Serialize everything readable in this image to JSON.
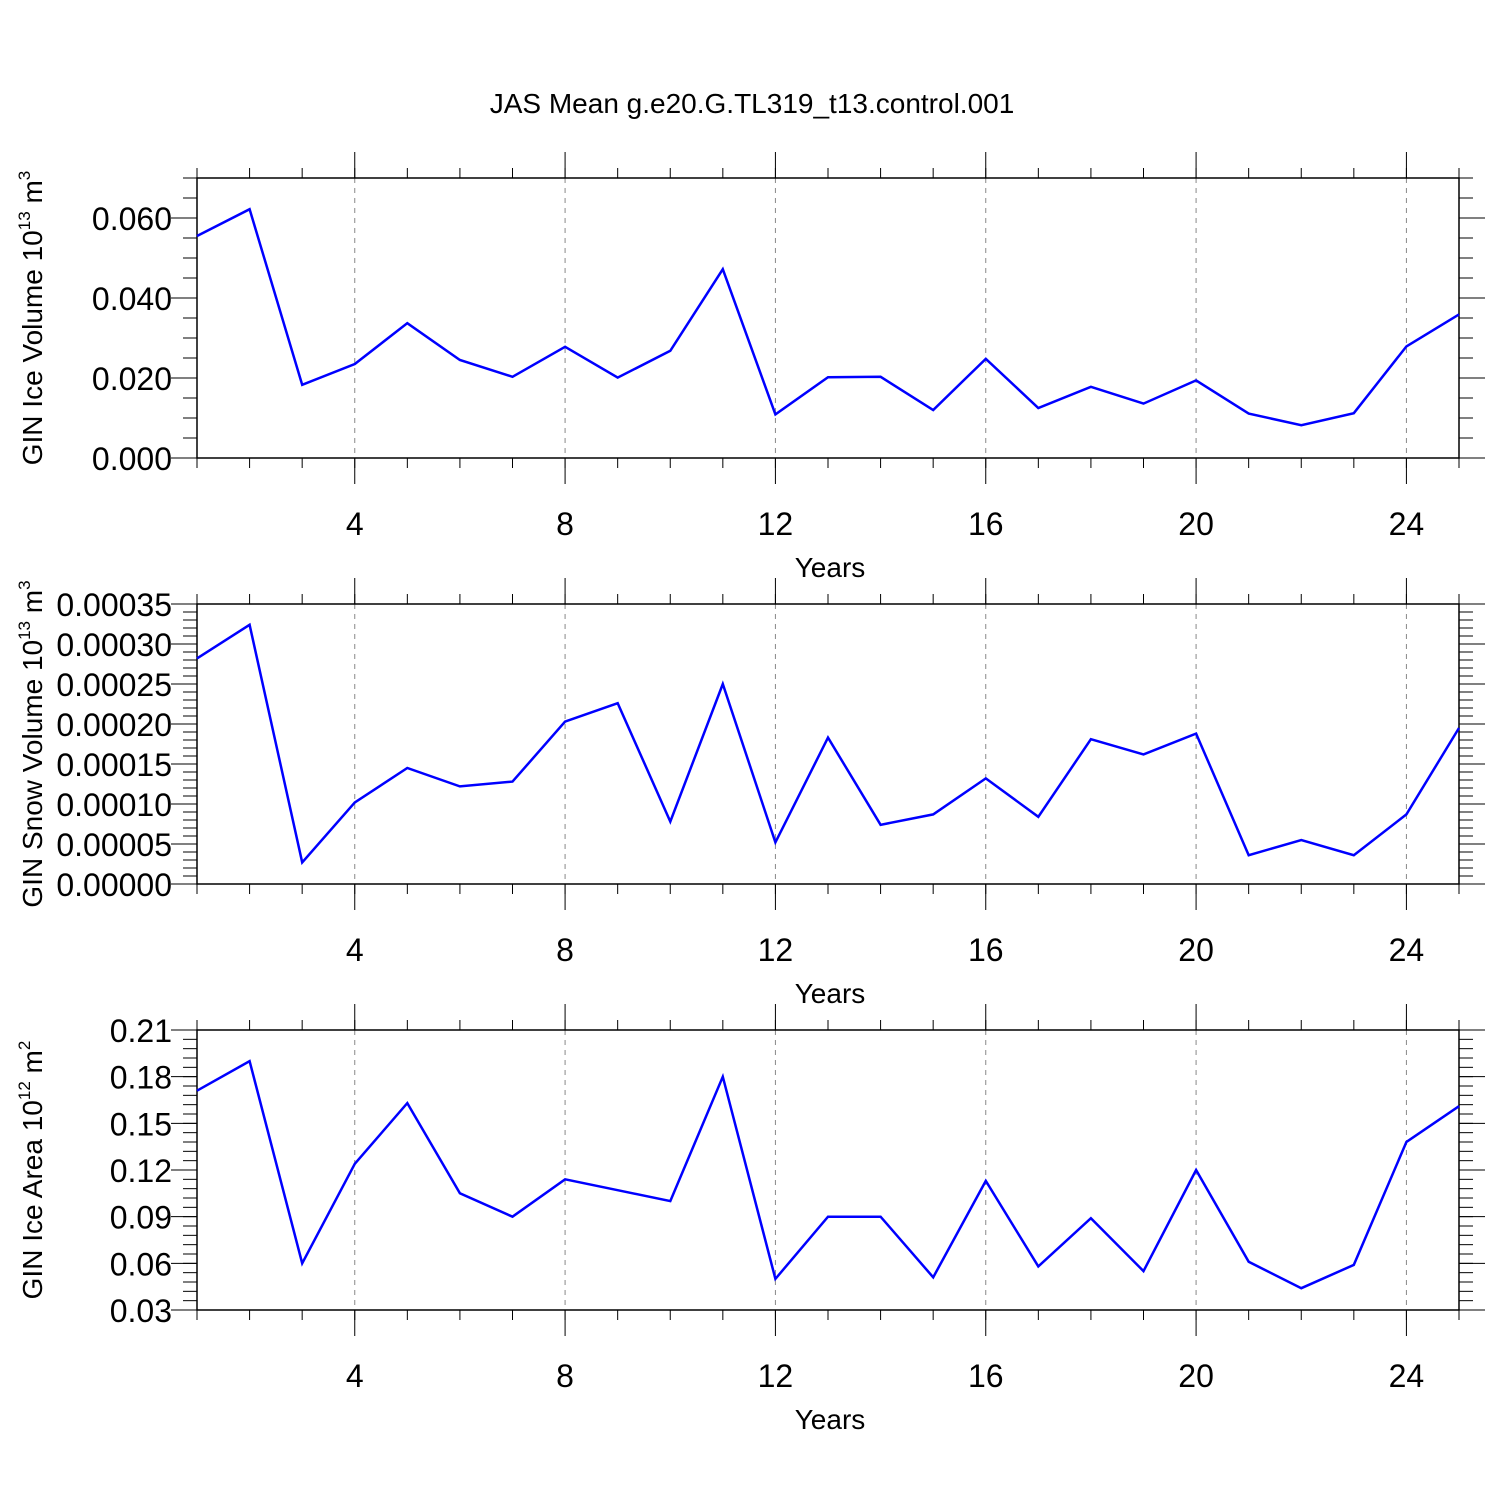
{
  "title": "JAS Mean g.e20.G.TL319_t13.control.001",
  "colors": {
    "line": "#0000ff",
    "axis": "#000000",
    "grid": "#888888"
  },
  "chart_data": [
    {
      "type": "line",
      "ylabel_main": "GIN Ice Volume 10",
      "ylabel_exp": "13",
      "ylabel_unit": " m",
      "ylabel_unit_exp": "3",
      "xlabel": "Years",
      "xlim": [
        1,
        25
      ],
      "ylim": [
        0.0,
        0.07
      ],
      "yticks": [
        0.0,
        0.02,
        0.04,
        0.06
      ],
      "ytick_labels": [
        "0.000",
        "0.020",
        "0.040",
        "0.060"
      ],
      "yminor_step": 0.005,
      "xticks": [
        4,
        8,
        12,
        16,
        20,
        24
      ],
      "xtick_labels": [
        "4",
        "8",
        "12",
        "16",
        "20",
        "24"
      ],
      "grid": "vertical dashed at major x ticks",
      "x": [
        1,
        2,
        3,
        4,
        5,
        6,
        7,
        8,
        9,
        10,
        11,
        12,
        13,
        14,
        15,
        16,
        17,
        18,
        19,
        20,
        21,
        22,
        23,
        24,
        25
      ],
      "series": [
        {
          "values": [
            0.0555,
            0.0622,
            0.0183,
            0.0235,
            0.0337,
            0.0245,
            0.0203,
            0.0278,
            0.0201,
            0.0268,
            0.0472,
            0.0109,
            0.0202,
            0.0203,
            0.012,
            0.0248,
            0.0125,
            0.0178,
            0.0136,
            0.0194,
            0.0111,
            0.0082,
            0.0112,
            0.0279,
            0.0359
          ]
        }
      ]
    },
    {
      "type": "line",
      "ylabel_main": "GIN Snow Volume 10",
      "ylabel_exp": "13",
      "ylabel_unit": " m",
      "ylabel_unit_exp": "3",
      "xlabel": "Years",
      "xlim": [
        1,
        25
      ],
      "ylim": [
        0.0,
        0.00035
      ],
      "yticks": [
        0.0,
        5e-05,
        0.0001,
        0.00015,
        0.0002,
        0.00025,
        0.0003,
        0.00035
      ],
      "ytick_labels": [
        "0.00000",
        "0.00005",
        "0.00010",
        "0.00015",
        "0.00020",
        "0.00025",
        "0.00030",
        "0.00035"
      ],
      "yminor_step": 1e-05,
      "xticks": [
        4,
        8,
        12,
        16,
        20,
        24
      ],
      "xtick_labels": [
        "4",
        "8",
        "12",
        "16",
        "20",
        "24"
      ],
      "grid": "vertical dashed at major x ticks",
      "x": [
        1,
        2,
        3,
        4,
        5,
        6,
        7,
        8,
        9,
        10,
        11,
        12,
        13,
        14,
        15,
        16,
        17,
        18,
        19,
        20,
        21,
        22,
        23,
        24,
        25
      ],
      "series": [
        {
          "values": [
            0.000282,
            0.000324,
            2.7e-05,
            0.000102,
            0.000145,
            0.000122,
            0.000128,
            0.000203,
            0.000226,
            7.8e-05,
            0.00025,
            5.2e-05,
            0.000183,
            7.4e-05,
            8.7e-05,
            0.000132,
            8.4e-05,
            0.000181,
            0.000162,
            0.000188,
            3.6e-05,
            5.5e-05,
            3.6e-05,
            8.7e-05,
            0.000195
          ]
        }
      ]
    },
    {
      "type": "line",
      "ylabel_main": "GIN Ice Area 10",
      "ylabel_exp": "12",
      "ylabel_unit": " m",
      "ylabel_unit_exp": "2",
      "xlabel": "Years",
      "xlim": [
        1,
        25
      ],
      "ylim": [
        0.03,
        0.21
      ],
      "yticks": [
        0.03,
        0.06,
        0.09,
        0.12,
        0.15,
        0.18,
        0.21
      ],
      "ytick_labels": [
        "0.03",
        "0.06",
        "0.09",
        "0.12",
        "0.15",
        "0.18",
        "0.21"
      ],
      "yminor_step": 0.006,
      "xticks": [
        4,
        8,
        12,
        16,
        20,
        24
      ],
      "xtick_labels": [
        "4",
        "8",
        "12",
        "16",
        "20",
        "24"
      ],
      "grid": "vertical dashed at major x ticks",
      "x": [
        1,
        2,
        3,
        4,
        5,
        6,
        7,
        8,
        9,
        10,
        11,
        12,
        13,
        14,
        15,
        16,
        17,
        18,
        19,
        20,
        21,
        22,
        23,
        24,
        25
      ],
      "series": [
        {
          "values": [
            0.171,
            0.19,
            0.06,
            0.124,
            0.163,
            0.105,
            0.09,
            0.114,
            0.107,
            0.1,
            0.18,
            0.05,
            0.09,
            0.09,
            0.051,
            0.113,
            0.058,
            0.089,
            0.055,
            0.12,
            0.061,
            0.044,
            0.059,
            0.138,
            0.161
          ]
        }
      ]
    }
  ]
}
